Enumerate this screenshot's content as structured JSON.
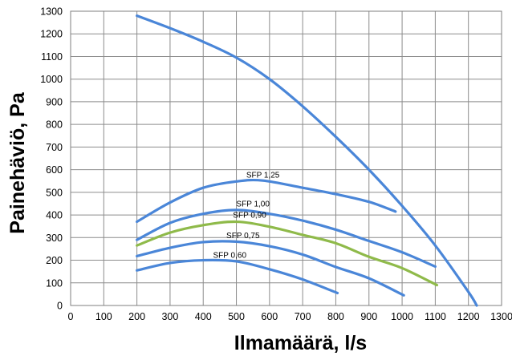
{
  "chart_data": {
    "type": "line",
    "xlabel": "Ilmamäärä, l/s",
    "ylabel": "Painehäviö, Pa",
    "xlim": [
      0,
      1300
    ],
    "ylim": [
      0,
      1300
    ],
    "xticks": [
      0,
      100,
      200,
      300,
      400,
      500,
      600,
      700,
      800,
      900,
      1000,
      1100,
      1200,
      1300
    ],
    "yticks": [
      0,
      100,
      200,
      300,
      400,
      500,
      600,
      700,
      800,
      900,
      1000,
      1100,
      1200,
      1300
    ],
    "grid": true,
    "series": [
      {
        "color": "#4a86d8",
        "x": [
          200,
          300,
          400,
          500,
          600,
          700,
          800,
          900,
          1000,
          1100,
          1200,
          1225
        ],
        "y": [
          1280,
          1225,
          1165,
          1095,
          1000,
          880,
          745,
          600,
          440,
          265,
          60,
          0
        ]
      },
      {
        "name": "SFP 1,25",
        "color": "#4a86d8",
        "x": [
          200,
          300,
          400,
          500,
          580,
          700,
          800,
          900,
          980
        ],
        "y": [
          370,
          455,
          520,
          548,
          552,
          520,
          492,
          458,
          415
        ]
      },
      {
        "name": "SFP 1,00",
        "color": "#4a86d8",
        "x": [
          200,
          300,
          400,
          500,
          600,
          700,
          800,
          900,
          1000,
          1100
        ],
        "y": [
          290,
          365,
          405,
          422,
          405,
          375,
          335,
          285,
          235,
          172
        ]
      },
      {
        "name": "SFP 0,90",
        "color": "#8fba4a",
        "x": [
          200,
          300,
          400,
          500,
          600,
          700,
          800,
          900,
          1000,
          1105
        ],
        "y": [
          265,
          322,
          355,
          370,
          348,
          312,
          275,
          215,
          165,
          90
        ]
      },
      {
        "name": "SFP 0,75",
        "color": "#4a86d8",
        "x": [
          200,
          300,
          400,
          500,
          600,
          700,
          800,
          900,
          1005
        ],
        "y": [
          218,
          255,
          280,
          282,
          262,
          225,
          170,
          120,
          45
        ]
      },
      {
        "name": "SFP 0,60",
        "color": "#4a86d8",
        "x": [
          200,
          300,
          400,
          500,
          600,
          700,
          805
        ],
        "y": [
          155,
          188,
          200,
          195,
          160,
          115,
          55
        ]
      }
    ],
    "annotations": [
      {
        "text": "SFP 1,25",
        "x": 580,
        "y": 565
      },
      {
        "text": "SFP 1,00",
        "x": 550,
        "y": 437
      },
      {
        "text": "SFP 0,90",
        "x": 540,
        "y": 387
      },
      {
        "text": "SFP 0,75",
        "x": 520,
        "y": 297
      },
      {
        "text": "SFP 0,60",
        "x": 480,
        "y": 210
      }
    ]
  }
}
